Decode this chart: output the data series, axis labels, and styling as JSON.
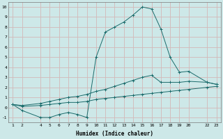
{
  "xlabel": "Humidex (Indice chaleur)",
  "background_color": "#cde8e8",
  "grid_color": "#d4b8b8",
  "line_color": "#1a6b6b",
  "x_ticks": [
    1,
    2,
    4,
    5,
    6,
    7,
    8,
    9,
    10,
    11,
    12,
    13,
    14,
    15,
    16,
    17,
    18,
    19,
    20,
    22,
    23
  ],
  "line1_x": [
    1,
    2,
    4,
    5,
    6,
    7,
    8,
    9,
    10,
    11,
    12,
    13,
    14,
    15,
    16,
    17,
    18,
    19,
    20,
    22,
    23
  ],
  "line1_y": [
    0.3,
    0.1,
    0.2,
    0.3,
    0.4,
    0.5,
    0.5,
    0.6,
    0.8,
    0.9,
    1.0,
    1.1,
    1.2,
    1.3,
    1.4,
    1.5,
    1.6,
    1.7,
    1.8,
    2.0,
    2.1
  ],
  "line2_x": [
    1,
    2,
    4,
    5,
    6,
    7,
    8,
    9,
    10,
    11,
    12,
    13,
    14,
    15,
    16,
    17,
    18,
    19,
    20,
    22,
    23
  ],
  "line2_y": [
    0.3,
    0.2,
    0.4,
    0.6,
    0.8,
    1.0,
    1.1,
    1.3,
    1.6,
    1.8,
    2.1,
    2.4,
    2.7,
    3.0,
    3.2,
    2.5,
    2.5,
    2.5,
    2.6,
    2.5,
    2.3
  ],
  "line3_x": [
    1,
    2,
    4,
    5,
    6,
    7,
    8,
    9,
    10,
    11,
    12,
    13,
    14,
    15,
    16,
    17,
    18,
    19,
    20,
    22,
    23
  ],
  "line3_y": [
    0.3,
    -0.3,
    -1.0,
    -1.0,
    -0.7,
    -0.5,
    -0.7,
    -1.0,
    5.0,
    7.5,
    8.0,
    8.5,
    9.2,
    10.0,
    9.8,
    7.8,
    5.0,
    3.5,
    3.6,
    2.5,
    2.3
  ],
  "ylim": [
    -1.5,
    10.5
  ],
  "xlim": [
    0.5,
    23.5
  ],
  "yticks": [
    -1,
    0,
    1,
    2,
    3,
    4,
    5,
    6,
    7,
    8,
    9,
    10
  ]
}
